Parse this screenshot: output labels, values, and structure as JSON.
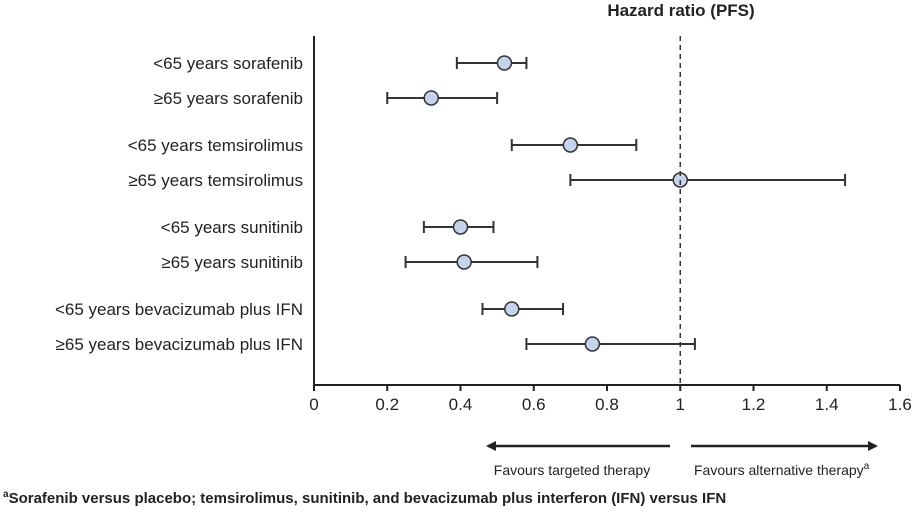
{
  "chart_data": {
    "type": "forest",
    "title": "Hazard ratio (PFS)",
    "xlim": [
      0,
      1.6
    ],
    "xticks": [
      "0",
      "0.2",
      "0.4",
      "0.6",
      "0.8",
      "1",
      "1.2",
      "1.4",
      "1.6"
    ],
    "xtick_values": [
      0,
      0.2,
      0.4,
      0.6,
      0.8,
      1.0,
      1.2,
      1.4,
      1.6
    ],
    "reference_line": 1.0,
    "grid": false,
    "marker_color": "#c5d3ec",
    "line_color": "#333333",
    "groups": [
      {
        "rows": [
          {
            "label": "<65 years sorafenib",
            "hr": 0.52,
            "lo": 0.39,
            "hi": 0.58
          },
          {
            "label": "≥65 years sorafenib",
            "hr": 0.32,
            "lo": 0.2,
            "hi": 0.5
          }
        ]
      },
      {
        "rows": [
          {
            "label": "<65 years temsirolimus",
            "hr": 0.7,
            "lo": 0.54,
            "hi": 0.88
          },
          {
            "label": "≥65 years temsirolimus",
            "hr": 1.0,
            "lo": 0.7,
            "hi": 1.45
          }
        ]
      },
      {
        "rows": [
          {
            "label": "<65 years sunitinib",
            "hr": 0.4,
            "lo": 0.3,
            "hi": 0.49
          },
          {
            "label": "≥65 years sunitinib",
            "hr": 0.41,
            "lo": 0.25,
            "hi": 0.61
          }
        ]
      },
      {
        "rows": [
          {
            "label": "<65 years bevacizumab plus IFN",
            "hr": 0.54,
            "lo": 0.46,
            "hi": 0.68
          },
          {
            "label": "≥65 years bevacizumab plus IFN",
            "hr": 0.76,
            "lo": 0.58,
            "hi": 1.04
          }
        ]
      }
    ],
    "favours_left": "Favours targeted therapy",
    "favours_right": "Favours alternative therapy",
    "favours_right_sup": "a",
    "footnote_sup": "a",
    "footnote": "Sorafenib versus placebo; temsirolimus, sunitinib, and bevacizumab plus interferon (IFN) versus IFN"
  }
}
